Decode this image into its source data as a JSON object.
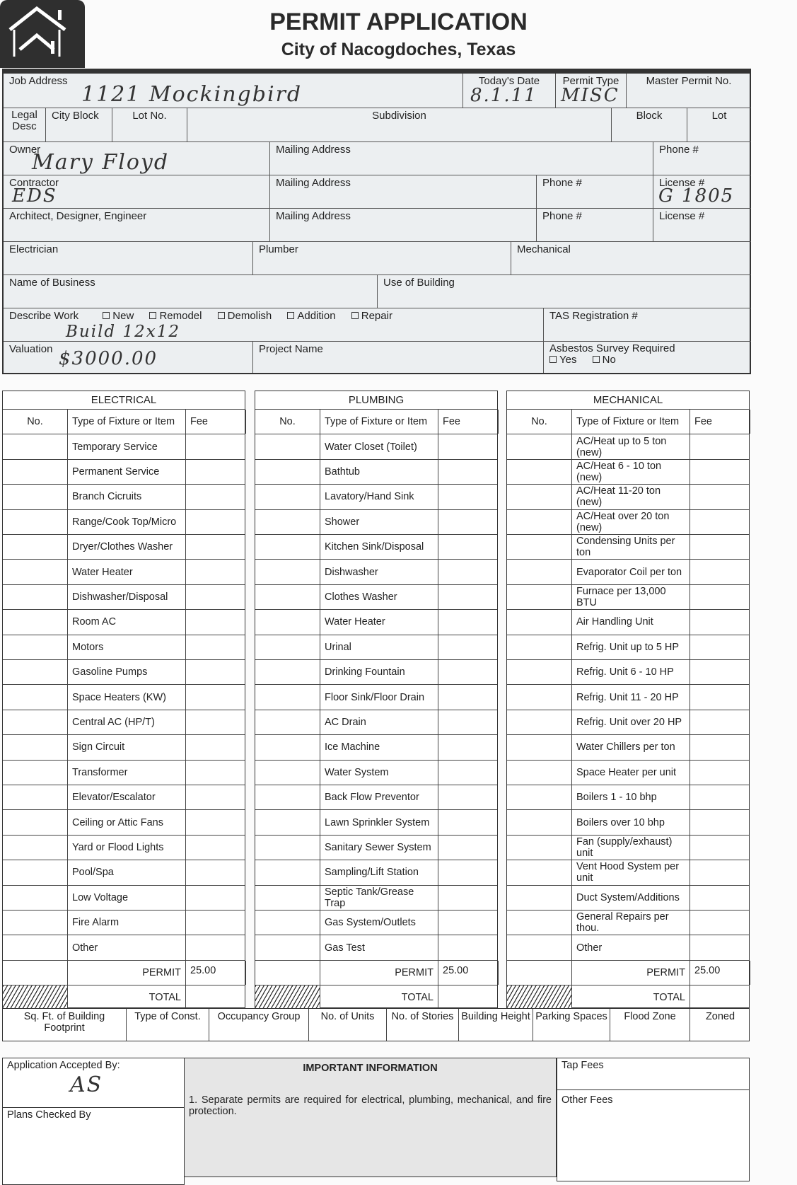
{
  "header": {
    "title": "PERMIT APPLICATION",
    "subtitle": "City of Nacogdoches, Texas",
    "logo_icon": "house-icon"
  },
  "form": {
    "job_address": {
      "label": "Job Address",
      "value": "1121 Mockingbird"
    },
    "todays_date": {
      "label": "Today's Date",
      "value": "8.1.11"
    },
    "permit_type": {
      "label": "Permit Type",
      "value": "MISC"
    },
    "master_permit": {
      "label": "Master Permit No."
    },
    "legal_desc": {
      "label": "Legal Desc"
    },
    "city_block": {
      "label": "City Block"
    },
    "lot_no": {
      "label": "Lot No."
    },
    "subdivision": {
      "label": "Subdivision"
    },
    "block": {
      "label": "Block"
    },
    "lot": {
      "label": "Lot"
    },
    "owner": {
      "label": "Owner",
      "value": "Mary Floyd"
    },
    "owner_mailing": {
      "label": "Mailing Address"
    },
    "owner_phone": {
      "label": "Phone #"
    },
    "contractor": {
      "label": "Contractor",
      "value": "EDS"
    },
    "contractor_mailing": {
      "label": "Mailing Address"
    },
    "contractor_phone": {
      "label": "Phone #"
    },
    "contractor_license": {
      "label": "License #",
      "value": "G 1805"
    },
    "architect": {
      "label": "Architect, Designer, Engineer"
    },
    "architect_mailing": {
      "label": "Mailing Address"
    },
    "architect_phone": {
      "label": "Phone #"
    },
    "architect_license": {
      "label": "License #"
    },
    "electrician": {
      "label": "Electrician"
    },
    "plumber": {
      "label": "Plumber"
    },
    "mechanical": {
      "label": "Mechanical"
    },
    "business_name": {
      "label": "Name of Business"
    },
    "use_of_building": {
      "label": "Use of Building"
    },
    "describe_work": {
      "label": "Describe Work",
      "value": "Build 12x12",
      "options": [
        "New",
        "Remodel",
        "Demolish",
        "Addition",
        "Repair"
      ]
    },
    "tas_registration": {
      "label": "TAS Registration #"
    },
    "valuation": {
      "label": "Valuation",
      "value": "$3000.00"
    },
    "project_name": {
      "label": "Project Name"
    },
    "asbestos": {
      "label": "Asbestos Survey Required",
      "options": [
        "Yes",
        "No"
      ]
    }
  },
  "fee_tables": [
    {
      "title": "ELECTRICAL",
      "col_no": "No.",
      "col_type": "Type of Fixture or Item",
      "col_fee": "Fee",
      "permit_label": "PERMIT",
      "permit_fee": "25.00",
      "total_label": "TOTAL",
      "items": [
        "Temporary Service",
        "Permanent Service",
        "Branch Cicruits",
        "Range/Cook Top/Micro",
        "Dryer/Clothes Washer",
        "Water Heater",
        "Dishwasher/Disposal",
        "Room AC",
        "Motors",
        "Gasoline Pumps",
        "Space Heaters (KW)",
        "Central AC (HP/T)",
        "Sign Circuit",
        "Transformer",
        "Elevator/Escalator",
        "Ceiling or Attic Fans",
        "Yard or Flood Lights",
        "Pool/Spa",
        "Low Voltage",
        "Fire Alarm",
        "Other"
      ]
    },
    {
      "title": "PLUMBING",
      "col_no": "No.",
      "col_type": "Type of Fixture or Item",
      "col_fee": "Fee",
      "permit_label": "PERMIT",
      "permit_fee": "25.00",
      "total_label": "TOTAL",
      "items": [
        "Water Closet (Toilet)",
        "Bathtub",
        "Lavatory/Hand Sink",
        "Shower",
        "Kitchen Sink/Disposal",
        "Dishwasher",
        "Clothes Washer",
        "Water Heater",
        "Urinal",
        "Drinking Fountain",
        "Floor Sink/Floor Drain",
        "AC Drain",
        "Ice Machine",
        "Water System",
        "Back Flow Preventor",
        "Lawn Sprinkler System",
        "Sanitary Sewer System",
        "Sampling/Lift Station",
        "Septic Tank/Grease Trap",
        "Gas System/Outlets",
        "Gas Test"
      ]
    },
    {
      "title": "MECHANICAL",
      "col_no": "No.",
      "col_type": "Type of Fixture or Item",
      "col_fee": "Fee",
      "permit_label": "PERMIT",
      "permit_fee": "25.00",
      "total_label": "TOTAL",
      "items": [
        "AC/Heat up to 5 ton (new)",
        "AC/Heat 6 - 10 ton (new)",
        "AC/Heat 11-20 ton (new)",
        "AC/Heat over 20 ton (new)",
        "Condensing Units per ton",
        "Evaporator Coil per ton",
        "Furnace per 13,000 BTU",
        "Air Handling Unit",
        "Refrig. Unit up to 5 HP",
        "Refrig. Unit 6 - 10 HP",
        "Refrig. Unit 11 - 20 HP",
        "Refrig. Unit over 20 HP",
        "Water Chillers per ton",
        "Space Heater per unit",
        "Boilers 1 - 10 bhp",
        "Boilers over 10 bhp",
        "Fan (supply/exhaust) unit",
        "Vent Hood System per unit",
        "Duct System/Additions",
        "General Repairs per thou.",
        "Other"
      ]
    }
  ],
  "building_info": [
    "Sq. Ft. of Building Footprint",
    "Type of Const.",
    "Occupancy Group",
    "No. of Units",
    "No. of Stories",
    "Building Height",
    "Parking Spaces",
    "Flood Zone",
    "Zoned"
  ],
  "footer": {
    "accepted_by": {
      "label": "Application Accepted By:",
      "value": "AS"
    },
    "plans_checked_by": {
      "label": "Plans Checked By"
    },
    "important_title": "IMPORTANT INFORMATION",
    "important_items": [
      "1.  Separate permits are required for electrical, plumbing, mechanical, and fire protection."
    ],
    "tap_fees": "Tap Fees",
    "other_fees": "Other Fees"
  }
}
